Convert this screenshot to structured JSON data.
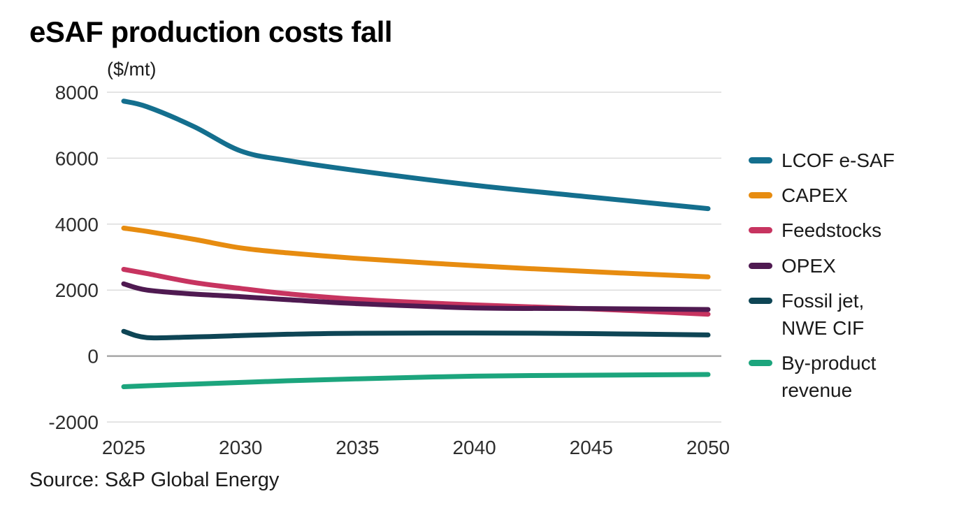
{
  "title": "eSAF production costs fall",
  "unit": "($/mt)",
  "source": "Source: S&P Global Energy",
  "chart_data": {
    "type": "line",
    "title": "eSAF production costs fall",
    "ylabel": "($/mt)",
    "xlabel": "",
    "x": [
      2025,
      2026,
      2028,
      2030,
      2032,
      2035,
      2040,
      2045,
      2050
    ],
    "xlim": [
      2025,
      2050
    ],
    "ylim": [
      -2000,
      8000
    ],
    "x_ticks": [
      2025,
      2030,
      2035,
      2040,
      2045,
      2050
    ],
    "y_ticks": [
      -2000,
      0,
      2000,
      4000,
      6000,
      8000
    ],
    "grid": "horizontal",
    "legend_position": "right",
    "series": [
      {
        "name": "LCOF e-SAF",
        "color": "#146f8e",
        "values": [
          7730,
          7560,
          6960,
          6220,
          5930,
          5620,
          5180,
          4820,
          4470
        ]
      },
      {
        "name": "CAPEX",
        "color": "#e78c10",
        "values": [
          3880,
          3780,
          3540,
          3280,
          3130,
          2960,
          2740,
          2560,
          2400
        ]
      },
      {
        "name": "Feedstocks",
        "color": "#c73460",
        "values": [
          2630,
          2500,
          2230,
          2050,
          1890,
          1720,
          1550,
          1430,
          1270
        ]
      },
      {
        "name": "OPEX",
        "color": "#4f1a51",
        "values": [
          2190,
          2000,
          1880,
          1800,
          1710,
          1590,
          1460,
          1440,
          1410
        ]
      },
      {
        "name": "Fossil jet, NWE CIF",
        "color": "#0e4555",
        "values": [
          750,
          560,
          580,
          620,
          660,
          690,
          700,
          680,
          640
        ]
      },
      {
        "name": "By-product revenue",
        "color": "#1ca57d",
        "values": [
          -930,
          -900,
          -850,
          -800,
          -750,
          -690,
          -610,
          -580,
          -560
        ]
      }
    ]
  },
  "axis_style": {
    "grid_color": "#dcdcdc",
    "zero_line_color": "#a6a6a6",
    "tick_label_color": "#2e2e2e"
  }
}
